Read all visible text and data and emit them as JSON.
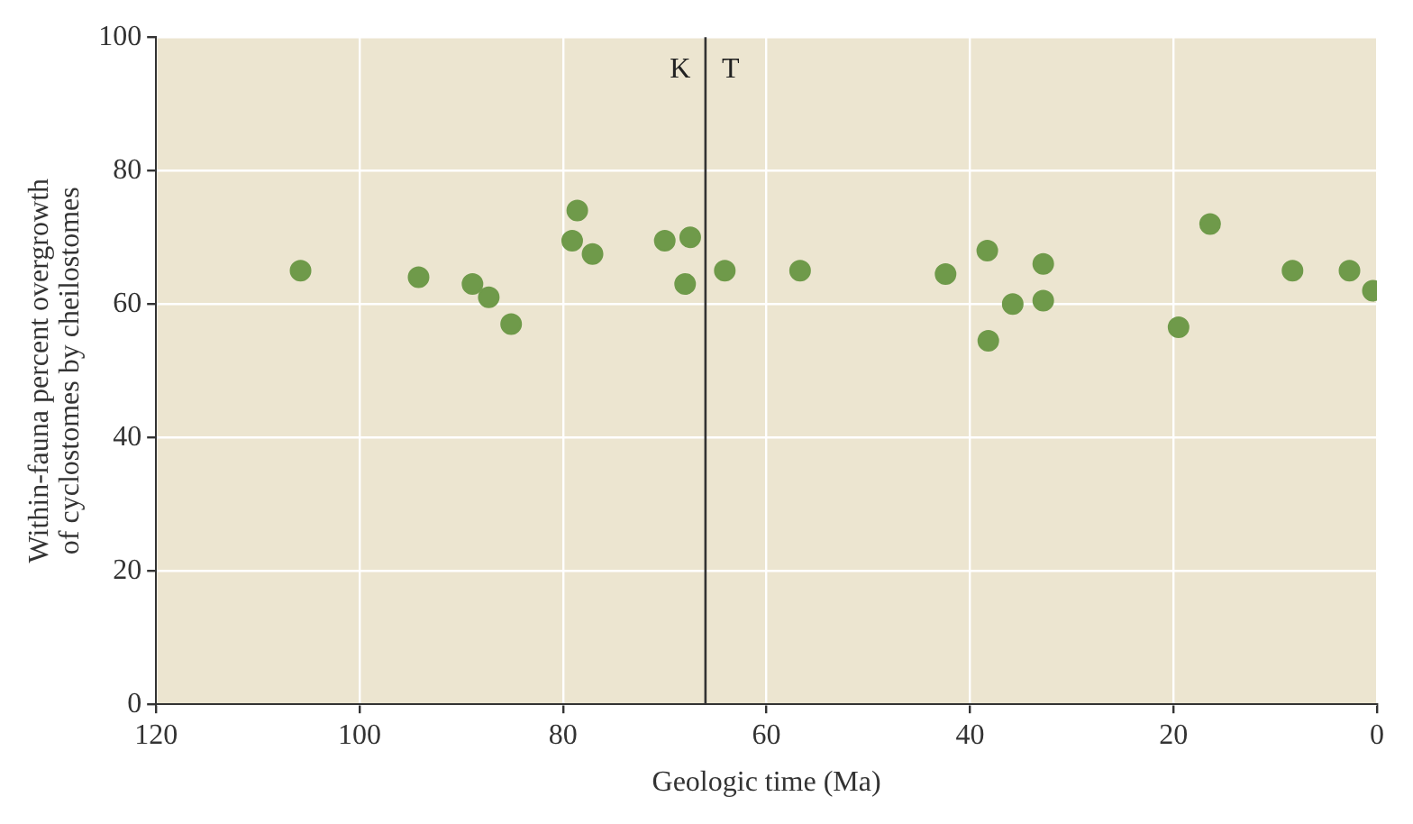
{
  "chart_data": {
    "type": "scatter",
    "xlabel": "Geologic time (Ma)",
    "ylabel": "Within-fauna percent overgrowth\nof cyclostomes by cheilostomes",
    "x": [
      105.8,
      94.2,
      88.9,
      87.3,
      85.1,
      79.1,
      78.6,
      77.1,
      70,
      68,
      67.5,
      64.1,
      56.7,
      42.4,
      38.3,
      38.2,
      35.8,
      32.8,
      32.8,
      19.5,
      16.4,
      8.3,
      2.7,
      0.4
    ],
    "series": [
      {
        "color": "#6f9a4a",
        "values": [
          65,
          64,
          63,
          61,
          57,
          69.5,
          74,
          67.5,
          69.5,
          63,
          70,
          65,
          65,
          64.5,
          68,
          54.5,
          60,
          60.5,
          66,
          56.5,
          72,
          65,
          65,
          62
        ]
      }
    ],
    "xlim": [
      120,
      0
    ],
    "xticks": [
      120,
      100,
      80,
      60,
      40,
      20,
      0
    ],
    "ylim": [
      0,
      100
    ],
    "yticks": [
      0,
      20,
      40,
      60,
      80,
      100
    ],
    "grid": true,
    "marker": "circle",
    "ref_lines": [
      {
        "axis": "x",
        "value": 66,
        "color": "#333333",
        "line_style": "solid"
      }
    ],
    "annotations": [
      "K",
      "T"
    ]
  }
}
